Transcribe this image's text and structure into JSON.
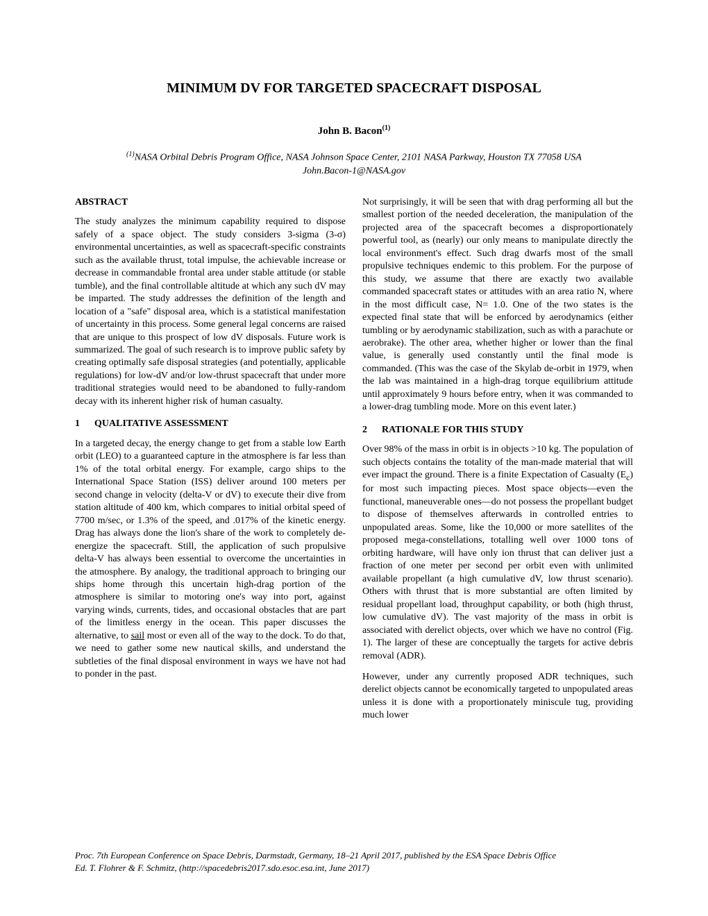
{
  "title": "MINIMUM DV FOR TARGETED SPACECRAFT DISPOSAL",
  "author": "John B. Bacon",
  "author_sup": "(1)",
  "affiliation_sup": "(1)",
  "affiliation": "NASA Orbital Debris Program Office, NASA Johnson Space Center, 2101 NASA Parkway, Houston TX 77058 USA",
  "email": "John.Bacon-1@NASA.gov",
  "abstract_heading": "ABSTRACT",
  "abstract_text": "The study analyzes the minimum capability required to dispose safely of a space object. The study considers 3-sigma (3-σ) environmental uncertainties, as well as spacecraft-specific constraints such as the available thrust, total impulse, the achievable increase or decrease in commandable frontal area under stable attitude (or stable tumble), and the final controllable altitude at which any such dV may be imparted. The study addresses the definition of the length and location of a \"safe\" disposal area, which is a statistical manifestation of uncertainty in this process. Some general legal concerns are raised that are unique to this prospect of low dV disposals. Future work is summarized. The goal of such research is to improve public safety by creating optimally safe disposal strategies (and potentially, applicable regulations) for low-dV and/or low-thrust spacecraft that under more traditional strategies would need to be abandoned to fully-random decay with its inherent higher risk of human casualty.",
  "s1_num": "1",
  "s1_heading": "QUALITATIVE ASSESSMENT",
  "s1_p1_pre": "In a targeted decay, the energy change to get from a stable low Earth orbit (LEO) to a guaranteed capture in the atmosphere is far less than 1% of the total orbital energy. For example, cargo ships to the International Space Station (ISS) deliver around 100 meters per second change in velocity (delta-V or dV) to execute their dive from station altitude of 400 km, which compares to initial orbital speed of 7700 m/sec, or 1.3% of the speed, and .017% of the kinetic energy. Drag has always done the lion's share of the work to completely de-energize the spacecraft. Still, the application of such propulsive delta-V has always been essential to overcome the uncertainties in the atmosphere. By analogy, the traditional approach to bringing our ships home through this uncertain high-drag portion of the atmosphere is similar to motoring one's way into port, against varying winds, currents, tides, and occasional obstacles that are part of the limitless energy in the ocean. This paper discusses the alternative, to ",
  "s1_p1_sail": "sail",
  "s1_p1_post": " most or even all of the way to the dock. To do that, we need to gather some new nautical skills, and understand the subtleties of the final disposal environment in ways we have not had to ponder in the past.",
  "col2_p1": "Not surprisingly, it will be seen that with drag performing all but the smallest portion of the needed deceleration, the manipulation of the projected area of the spacecraft becomes a disproportionately powerful tool, as (nearly) our only means to manipulate directly the local environment's effect. Such drag dwarfs most of the small propulsive techniques endemic to this problem. For the purpose of this study, we assume that there are exactly two available commanded spacecraft states or attitudes with an area ratio N, where in the most difficult case, N= 1.0. One of the two states is the expected final state that will be enforced by aerodynamics (either tumbling or by aerodynamic stabilization, such as with a parachute or aerobrake). The other area, whether higher or lower than the final value, is generally used constantly until the final mode is commanded. (This was the case of the Skylab de-orbit in 1979, when the lab was maintained in a high-drag torque equilibrium attitude until approximately 9 hours before entry, when it was commanded to a lower-drag tumbling mode. More on this event later.)",
  "s2_num": "2",
  "s2_heading": "RATIONALE FOR THIS STUDY",
  "s2_p1_pre": "Over 98% of the mass in orbit is in objects >10 kg. The population of such objects contains the totality of the man-made material that will ever impact the ground. There is a finite Expectation of Casualty (E",
  "s2_p1_sub": "c",
  "s2_p1_post": ") for most such impacting pieces. Most space objects—even the functional, maneuverable ones—do not possess the propellant budget to dispose of themselves afterwards in controlled entries to unpopulated areas. Some, like the 10,000 or more satellites of the proposed mega-constellations, totalling well over 1000 tons of orbiting hardware, will have only ion thrust that can deliver just a fraction of one meter per second per orbit even with unlimited available propellant (a high cumulative dV, low thrust scenario). Others with thrust that is more substantial are often limited by residual propellant load, throughput capability, or both (high thrust, low cumulative dV). The vast majority of the mass in orbit is associated with derelict objects, over which we have no control (Fig. 1). The larger of these are conceptually the targets for active debris removal (ADR).",
  "s2_p2": "However, under any currently proposed ADR techniques, such derelict objects cannot be economically targeted to unpopulated areas unless it is done with a proportionately miniscule tug, providing much lower",
  "footer_line1": "Proc. 7th European Conference on Space Debris, Darmstadt, Germany, 18–21 April 2017, published by the ESA Space Debris Office",
  "footer_line2": "Ed. T. Flohrer & F. Schmitz, (http://spacedebris2017.sdo.esoc.esa.int, June 2017)"
}
